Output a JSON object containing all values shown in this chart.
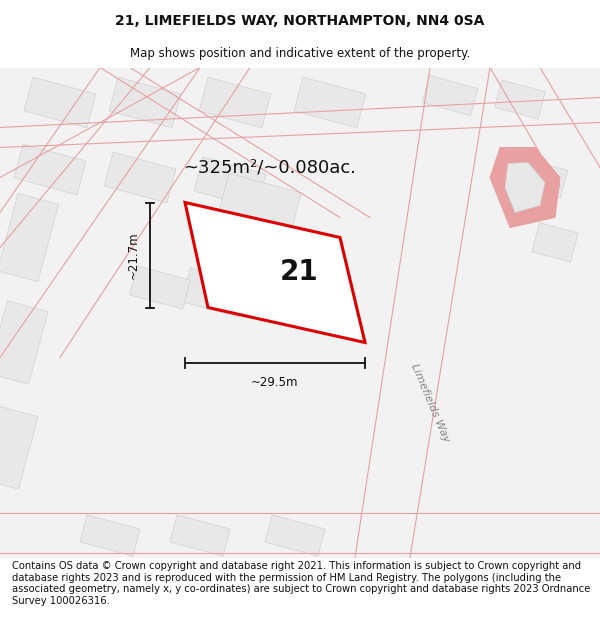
{
  "title": "21, LIMEFIELDS WAY, NORTHAMPTON, NN4 0SA",
  "subtitle": "Map shows position and indicative extent of the property.",
  "area_text": "~325m²/~0.080ac.",
  "property_number": "21",
  "width_label": "~29.5m",
  "height_label": "~21.7m",
  "street_label": "Limefields Way",
  "footer_text": "Contains OS data © Crown copyright and database right 2021. This information is subject to Crown copyright and database rights 2023 and is reproduced with the permission of HM Land Registry. The polygons (including the associated geometry, namely x, y co-ordinates) are subject to Crown copyright and database rights 2023 Ordnance Survey 100026316.",
  "map_bg": "#f2f2f2",
  "block_fill": "#e8e8e8",
  "block_edge": "#d0d0d0",
  "road_line": "#e8a0a0",
  "red_outline": "#dd0000",
  "black": "#111111",
  "dark_gray": "#444444",
  "mid_gray": "#888888",
  "title_fontsize": 10,
  "subtitle_fontsize": 8.5,
  "area_fontsize": 13,
  "label_fontsize": 8.5,
  "number_fontsize": 20,
  "footer_fontsize": 7.2,
  "street_fontsize": 8
}
